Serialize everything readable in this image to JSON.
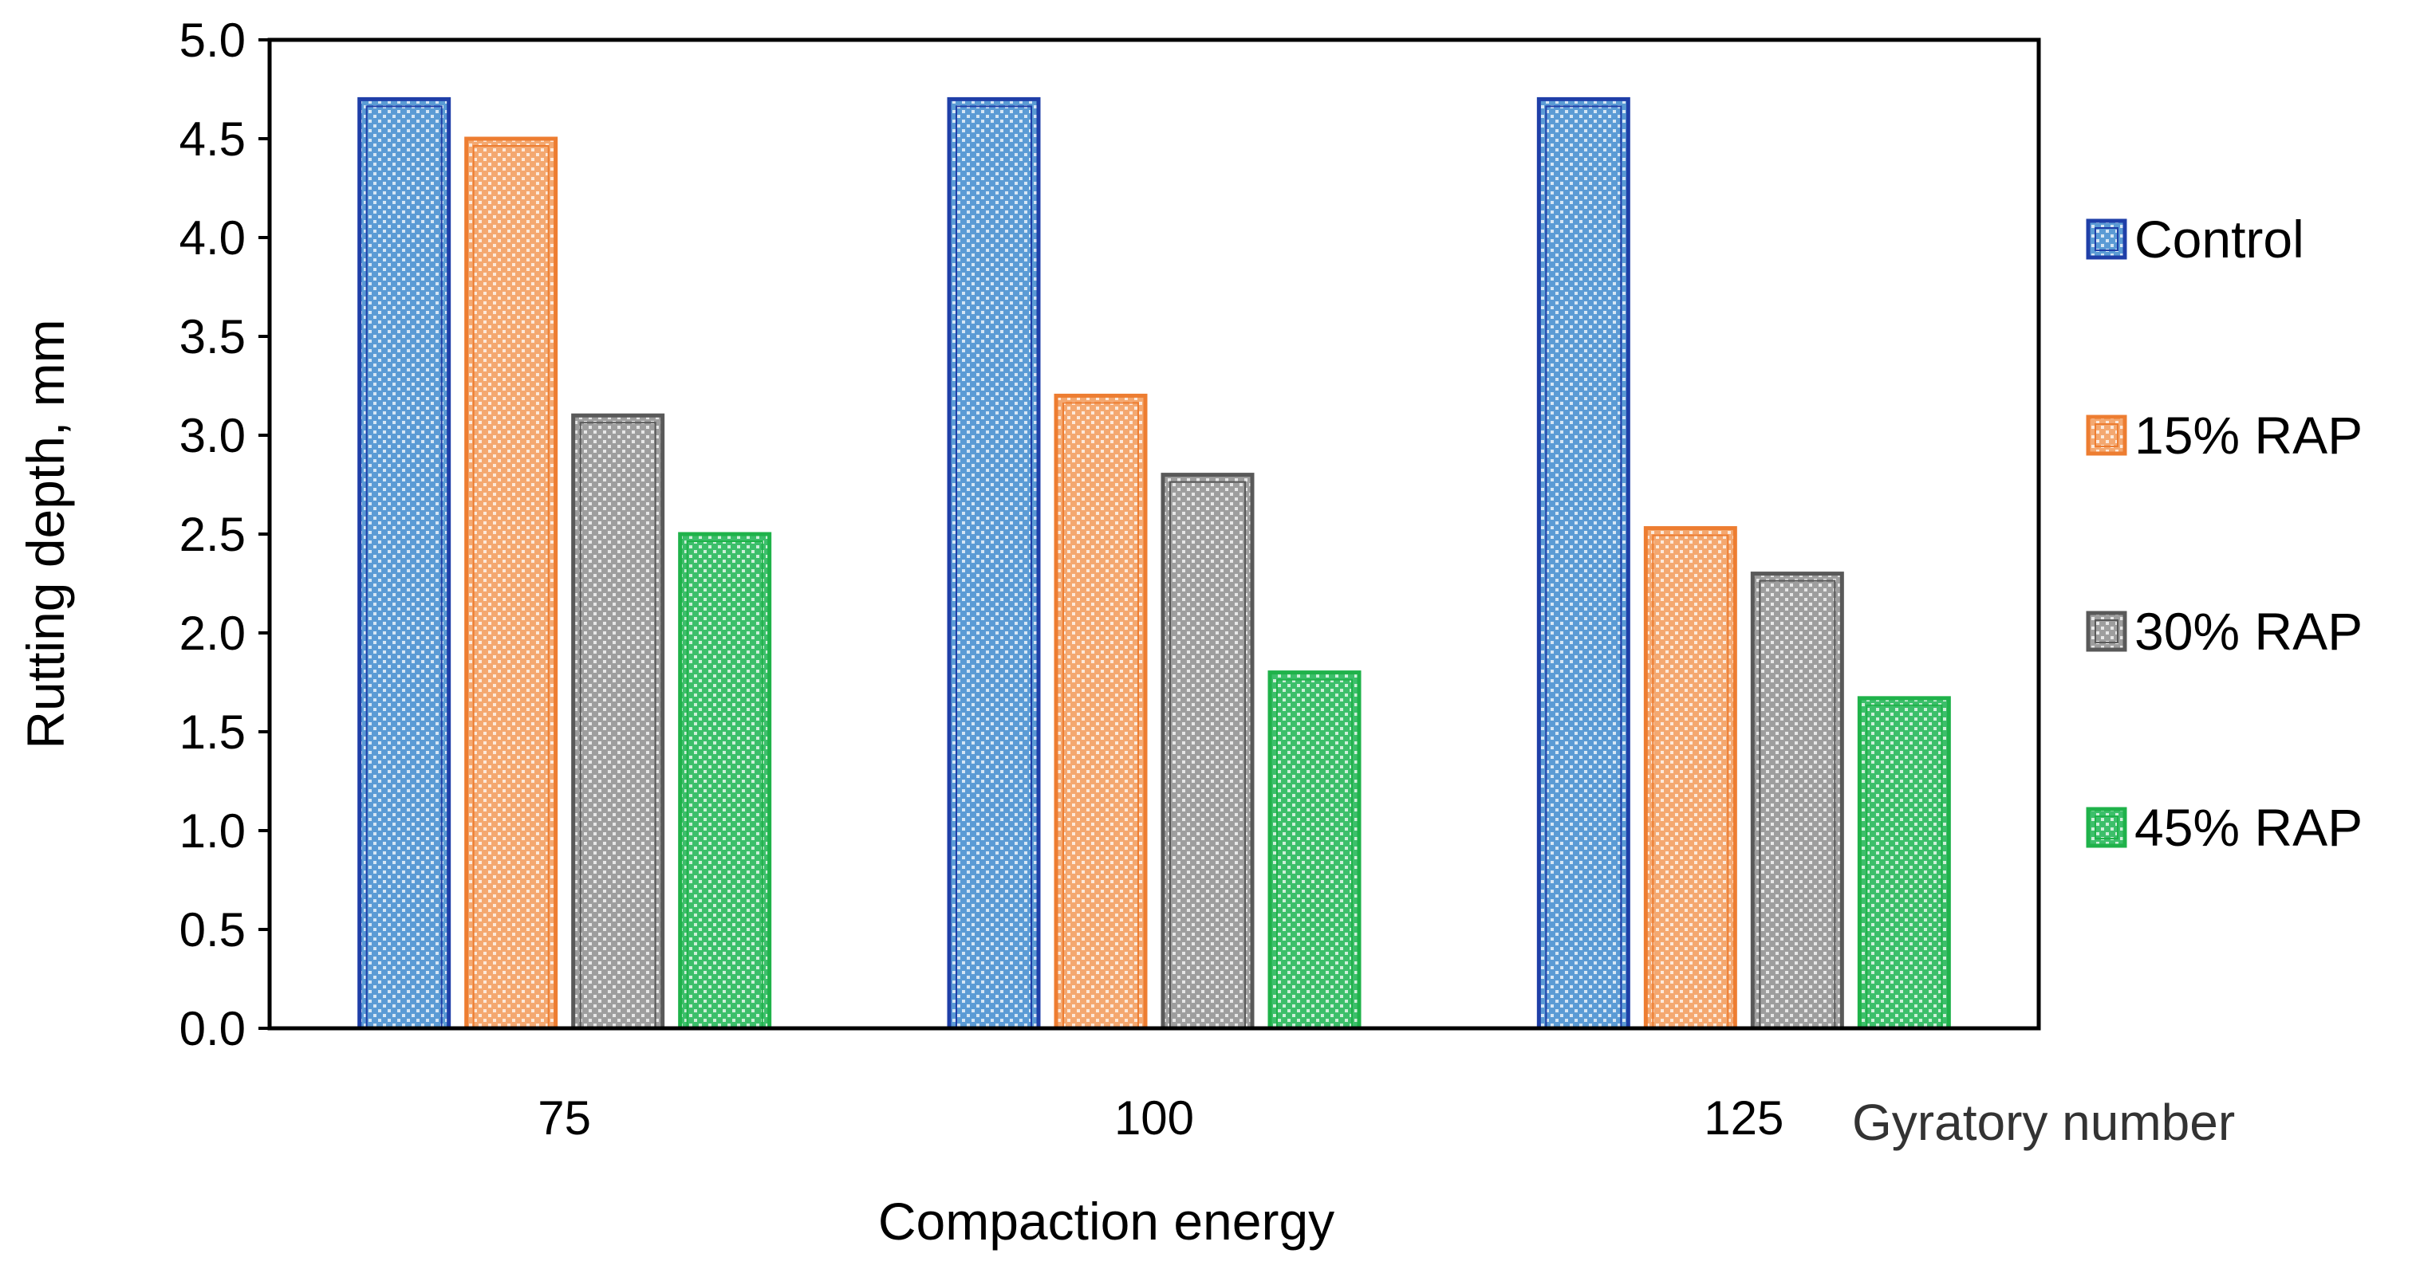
{
  "chart_data": {
    "type": "bar",
    "title": "",
    "xlabel": "Compaction energy",
    "ylabel": "Rutting depth, mm",
    "x_annotation": "Gyratory number",
    "categories": [
      "75",
      "100",
      "125"
    ],
    "ylim": [
      0,
      5.0
    ],
    "yticks": [
      "0.0",
      "0.5",
      "1.0",
      "1.5",
      "2.0",
      "2.5",
      "3.0",
      "3.5",
      "4.0",
      "4.5",
      "5.0"
    ],
    "grid": false,
    "legend_position": "right",
    "series": [
      {
        "name": "Control",
        "values": [
          4.7,
          4.7,
          4.7
        ],
        "color": "#1f3fa8",
        "fill": "#5b9bd5"
      },
      {
        "name": "15% RAP",
        "values": [
          4.5,
          3.2,
          2.53
        ],
        "color": "#ed7d31",
        "fill": "#f4a870"
      },
      {
        "name": "30% RAP",
        "values": [
          3.1,
          2.8,
          2.3
        ],
        "color": "#595959",
        "fill": "#9e9e9e"
      },
      {
        "name": "45% RAP",
        "values": [
          2.5,
          1.8,
          1.67
        ],
        "color": "#1fb24a",
        "fill": "#3cbf6a"
      }
    ]
  }
}
